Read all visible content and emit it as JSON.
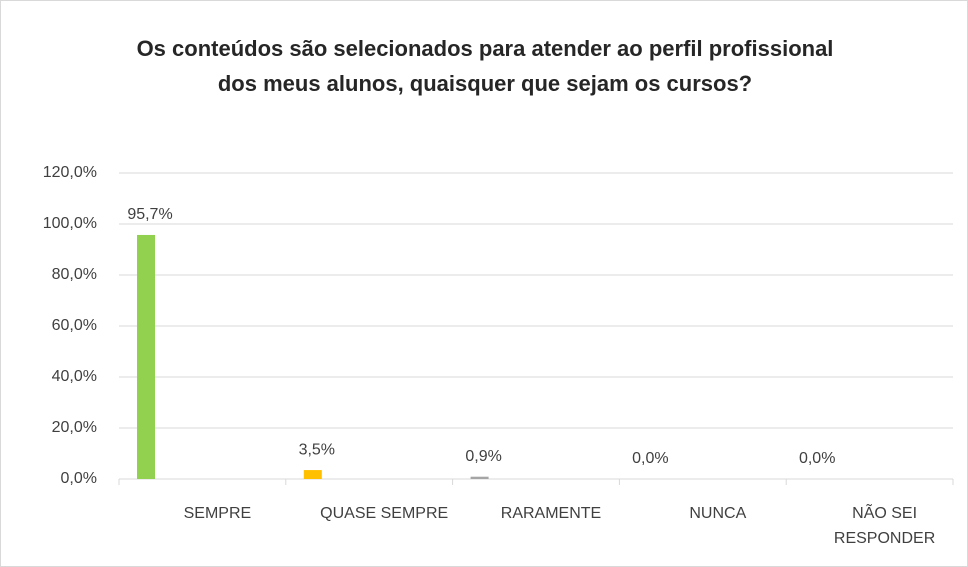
{
  "chart_data": {
    "type": "bar",
    "title": "Os conteúdos são selecionados para atender ao perfil profissional dos meus alunos, quaisquer que sejam os cursos?",
    "categories": [
      "SEMPRE",
      "QUASE SEMPRE",
      "RARAMENTE",
      "NUNCA",
      "NÃO SEI RESPONDER"
    ],
    "values": [
      95.7,
      3.5,
      0.9,
      0,
      0
    ],
    "value_labels": [
      "95,7%",
      "3,5%",
      "0,9%",
      "0,0%",
      "0,0%"
    ],
    "colors": [
      "#92d050",
      "#ffc000",
      "#a5a5a5",
      "#5b9bd5",
      "#ed7d31"
    ],
    "ylim": [
      0,
      120
    ],
    "yticks": [
      {
        "value": 0,
        "label": "0,0%"
      },
      {
        "value": 20,
        "label": "20,0%"
      },
      {
        "value": 40,
        "label": "40,0%"
      },
      {
        "value": 60,
        "label": "60,0%"
      },
      {
        "value": 80,
        "label": "80,0%"
      },
      {
        "value": 100,
        "label": "100,0%"
      },
      {
        "value": 120,
        "label": "120,0%"
      }
    ],
    "grid": true
  }
}
